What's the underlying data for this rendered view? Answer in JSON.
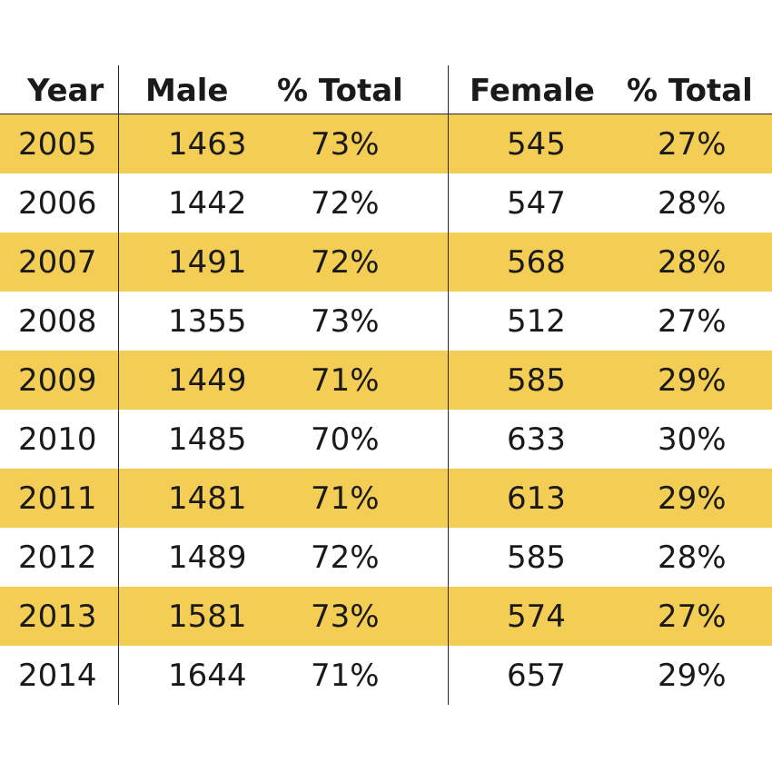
{
  "chart_data": {
    "type": "table",
    "columns": [
      "Year",
      "Male",
      "% Total",
      "Female",
      "% Total"
    ],
    "rows": [
      {
        "year": "2005",
        "male": "1463",
        "male_pct": "73%",
        "female": "545",
        "female_pct": "27%"
      },
      {
        "year": "2006",
        "male": "1442",
        "male_pct": "72%",
        "female": "547",
        "female_pct": "28%"
      },
      {
        "year": "2007",
        "male": "1491",
        "male_pct": "72%",
        "female": "568",
        "female_pct": "28%"
      },
      {
        "year": "2008",
        "male": "1355",
        "male_pct": "73%",
        "female": "512",
        "female_pct": "27%"
      },
      {
        "year": "2009",
        "male": "1449",
        "male_pct": "71%",
        "female": "585",
        "female_pct": "29%"
      },
      {
        "year": "2010",
        "male": "1485",
        "male_pct": "70%",
        "female": "633",
        "female_pct": "30%"
      },
      {
        "year": "2011",
        "male": "1481",
        "male_pct": "71%",
        "female": "613",
        "female_pct": "29%"
      },
      {
        "year": "2012",
        "male": "1489",
        "male_pct": "72%",
        "female": "585",
        "female_pct": "28%"
      },
      {
        "year": "2013",
        "male": "1581",
        "male_pct": "73%",
        "female": "574",
        "female_pct": "27%"
      },
      {
        "year": "2014",
        "male": "1644",
        "male_pct": "71%",
        "female": "657",
        "female_pct": "29%"
      }
    ],
    "stripe_color": "#f4cd55",
    "text_color": "#1a1a1a"
  }
}
